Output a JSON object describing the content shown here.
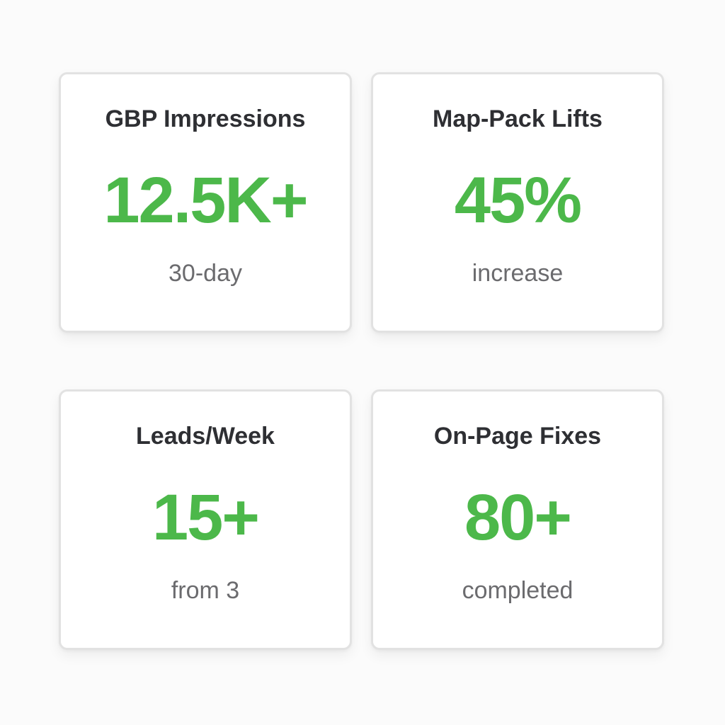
{
  "theme": {
    "accent_color": "#4cb84a",
    "title_color": "#2e2f33",
    "subtitle_color": "#6b6b6e",
    "card_border": "#e2e2e2",
    "background": "#fbfbfb"
  },
  "cards": [
    {
      "title": "GBP Impressions",
      "value": "12.5K+",
      "subtitle": "30-day"
    },
    {
      "title": "Map-Pack Lifts",
      "value": "45%",
      "subtitle": "increase"
    },
    {
      "title": "Leads/Week",
      "value": "15+",
      "subtitle": "from 3"
    },
    {
      "title": "On-Page Fixes",
      "value": "80+",
      "subtitle": "completed"
    }
  ]
}
